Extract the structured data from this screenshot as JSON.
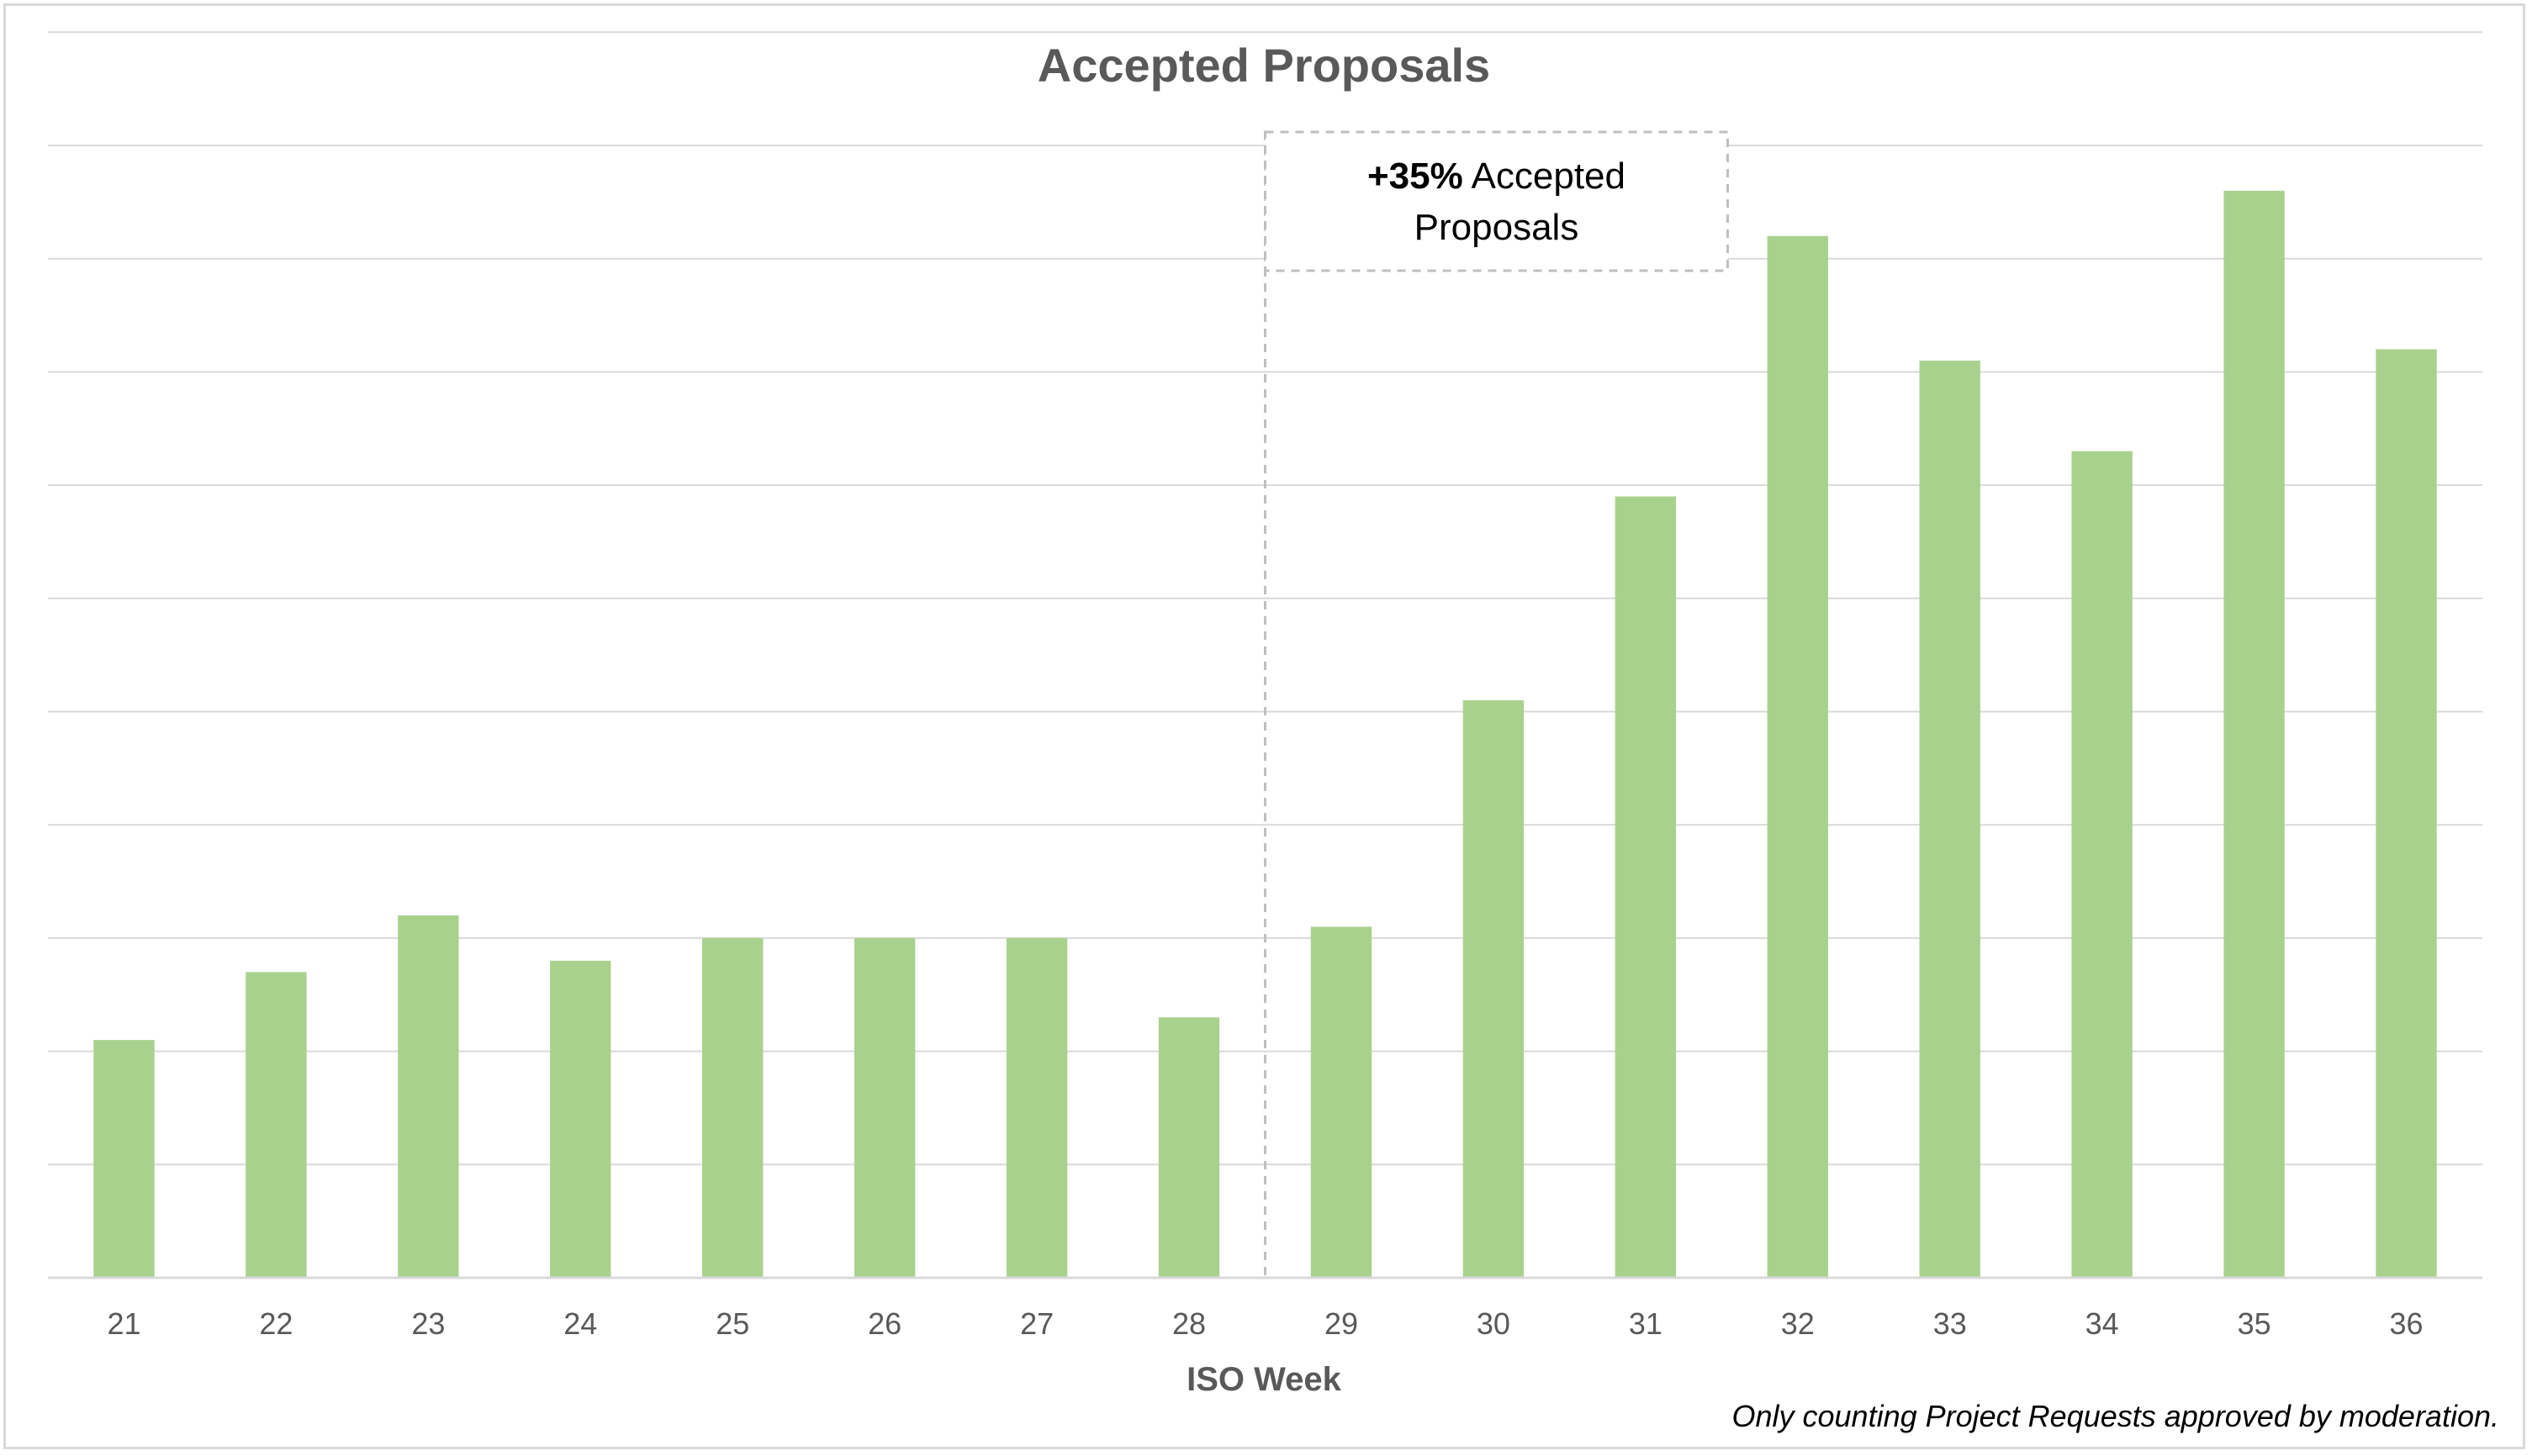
{
  "chart_data": {
    "type": "bar",
    "title": "Accepted Proposals",
    "xlabel": "ISO Week",
    "ylabel": "",
    "categories": [
      "21",
      "22",
      "23",
      "24",
      "25",
      "26",
      "27",
      "28",
      "29",
      "30",
      "31",
      "32",
      "33",
      "34",
      "35",
      "36"
    ],
    "values": [
      2.1,
      2.7,
      3.2,
      2.8,
      3.0,
      3.0,
      3.0,
      2.3,
      3.1,
      5.1,
      6.9,
      9.2,
      8.1,
      7.3,
      9.6,
      8.2
    ],
    "ylim": [
      0,
      10
    ],
    "grid": true,
    "bar_color": "#a9d18e",
    "grid_color": "#d9d9d9",
    "annotation": {
      "bold_text": "+35%",
      "text_line1": " Accepted",
      "text_line2": "Proposals",
      "after_category": "28"
    },
    "footnote": "Only counting Project Requests approved by moderation."
  }
}
